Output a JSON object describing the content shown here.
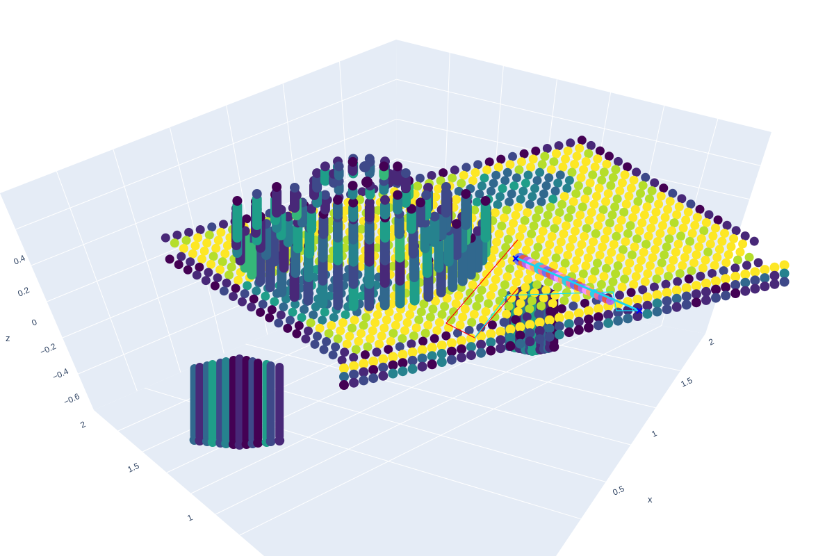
{
  "chart_data": {
    "type": "scatter3d",
    "title": "",
    "colorscale": "Viridis",
    "background": "#e5ecf6",
    "axes": {
      "x": {
        "label": "x",
        "ticks": [
          "0.5",
          "1",
          "1.5",
          "2"
        ]
      },
      "y": {
        "label": "",
        "ticks": [
          "1",
          "1.5",
          "2"
        ]
      },
      "z": {
        "label": "z",
        "ticks": [
          "0.4",
          "0.2",
          "0",
          "−0.2",
          "−0.4",
          "−0.6"
        ]
      }
    },
    "point_clouds": [
      {
        "part": "body",
        "colorscale": "Viridis"
      },
      {
        "part": "dome",
        "colorscale": "Viridis"
      },
      {
        "part": "front-leg",
        "colorscale": "Viridis"
      },
      {
        "part": "back-leg",
        "colorscale": "Viridis"
      }
    ],
    "overlays": [
      {
        "type": "line",
        "color": "#ff0000"
      },
      {
        "type": "line",
        "color": "#00e5ff"
      },
      {
        "type": "markers",
        "colors": [
          "#636efa",
          "#ef553b",
          "#ab63fa",
          "#ff97ff",
          "#ffa15a",
          "#19d3f3",
          "#ff6692"
        ]
      },
      {
        "type": "x-markers",
        "color": "#0000ff"
      }
    ]
  }
}
